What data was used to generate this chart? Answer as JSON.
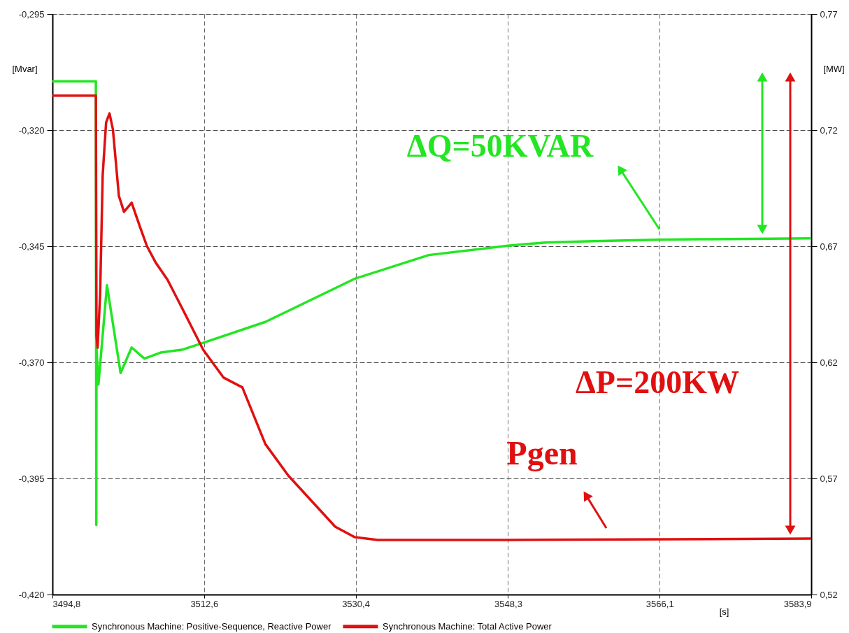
{
  "chart_data": {
    "type": "line",
    "xlabel": "[s]",
    "ylabel": "[Mvar]",
    "y2label": "[MW]",
    "xlim": [
      3494.8,
      3583.9
    ],
    "xticks": [
      {
        "value": 3494.8,
        "label": "3494,8"
      },
      {
        "value": 3512.6,
        "label": "3512,6"
      },
      {
        "value": 3530.4,
        "label": "3530,4"
      },
      {
        "value": 3548.3,
        "label": "3548,3"
      },
      {
        "value": 3566.1,
        "label": "3566,1"
      },
      {
        "value": 3583.9,
        "label": "3583,9"
      }
    ],
    "ylim": [
      -0.42,
      -0.295
    ],
    "yticks": [
      {
        "value": -0.42,
        "label": "-0,420"
      },
      {
        "value": -0.395,
        "label": "-0,395"
      },
      {
        "value": -0.37,
        "label": "-0,370"
      },
      {
        "value": -0.345,
        "label": "-0,345"
      },
      {
        "value": -0.32,
        "label": "-0,320"
      },
      {
        "value": -0.295,
        "label": "-0,295"
      }
    ],
    "y2lim": [
      0.52,
      0.77
    ],
    "y2ticks": [
      {
        "value": 0.52,
        "label": "0,52"
      },
      {
        "value": 0.57,
        "label": "0,57"
      },
      {
        "value": 0.62,
        "label": "0,62"
      },
      {
        "value": 0.67,
        "label": "0,67"
      },
      {
        "value": 0.72,
        "label": "0,72"
      },
      {
        "value": 0.77,
        "label": "0,77"
      }
    ],
    "grid": true,
    "legend": "bottom",
    "marker": "none",
    "line_style": "solid",
    "series": [
      {
        "name": "Synchronous Machine: Positive-Sequence, Reactive Power",
        "color": "#22e622",
        "axis": "y",
        "x": [
          3494.8,
          3499.9,
          3499.95,
          3499.97,
          3500.2,
          3501.2,
          3502.8,
          3504.1,
          3505.6,
          3507.5,
          3510.0,
          3512.5,
          3519.8,
          3530.3,
          3539.0,
          3548.3,
          3552.7,
          3558.4,
          3565.8,
          3570.7,
          3583.9
        ],
        "values": [
          -0.3095,
          -0.3095,
          -0.405,
          -0.367,
          -0.3748,
          -0.3534,
          -0.3723,
          -0.3668,
          -0.3692,
          -0.3679,
          -0.3673,
          -0.3658,
          -0.3613,
          -0.352,
          -0.3469,
          -0.3449,
          -0.3442,
          -0.3439,
          -0.3436,
          -0.3435,
          -0.3433
        ]
      },
      {
        "name": "Synchronous Machine: Total Active Power",
        "color": "#e01010",
        "axis": "y2",
        "x": [
          3494.8,
          3499.9,
          3499.97,
          3500.1,
          3500.4,
          3500.7,
          3501.1,
          3501.5,
          3501.9,
          3502.6,
          3503.2,
          3504.1,
          3505.1,
          3505.9,
          3506.9,
          3508.3,
          3510.0,
          3512.5,
          3514.9,
          3517.1,
          3519.8,
          3522.5,
          3528.0,
          3530.3,
          3533.0,
          3548.3,
          3583.9
        ],
        "values": [
          0.7348,
          0.7348,
          0.6315,
          0.6263,
          0.6495,
          0.7007,
          0.7233,
          0.7272,
          0.7203,
          0.6917,
          0.6848,
          0.6887,
          0.6781,
          0.67,
          0.6631,
          0.6556,
          0.6435,
          0.6254,
          0.6134,
          0.6092,
          0.5848,
          0.5712,
          0.5492,
          0.5447,
          0.5435,
          0.5435,
          0.5441
        ]
      }
    ],
    "annotations": [
      "ΔQ=50KVAR",
      "ΔP=200KW",
      "Pgen"
    ]
  }
}
